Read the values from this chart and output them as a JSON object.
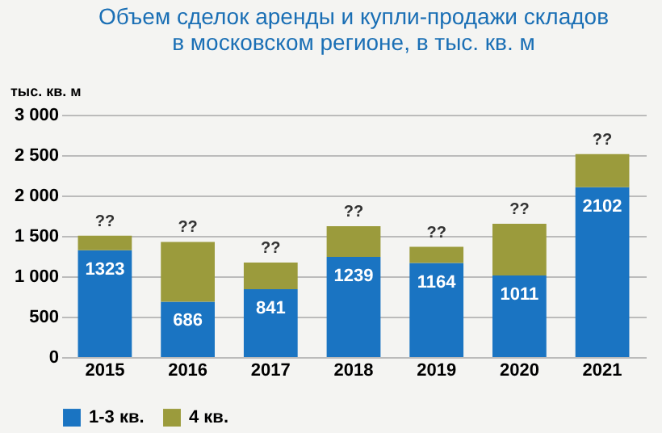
{
  "chart_data": {
    "type": "bar",
    "title": [
      "Объем сделок аренды и купли-продажи складов",
      "в московском регионе, в тыс. кв. м"
    ],
    "ylabel": "тыс. кв. м",
    "categories": [
      "2015",
      "2016",
      "2017",
      "2018",
      "2019",
      "2020",
      "2021"
    ],
    "stacked": true,
    "series": [
      {
        "name": "1-3 кв.",
        "color": "#1a74c2",
        "values": [
          1323,
          686,
          841,
          1239,
          1164,
          1011,
          2102
        ],
        "value_labels": [
          "1323",
          "686",
          "841",
          "1239",
          "1164",
          "1011",
          "2102"
        ]
      },
      {
        "name": "4 кв.",
        "color": "#9b9b3c",
        "values": [
          180,
          740,
          330,
          380,
          200,
          640,
          410
        ]
      }
    ],
    "totals": [
      "??",
      "??",
      "??",
      "??",
      "??",
      "??",
      "??"
    ],
    "ylim": [
      0,
      3000
    ],
    "yticks": [
      0,
      500,
      {
        "value": 1000,
        "label": "1 000"
      },
      {
        "value": 1500,
        "label": "1 500"
      },
      {
        "value": 2000,
        "label": "2 000"
      },
      {
        "value": 2500,
        "label": "2 500"
      },
      {
        "value": 3000,
        "label": "3 000"
      }
    ],
    "grid": "y",
    "legend": "bottom"
  }
}
